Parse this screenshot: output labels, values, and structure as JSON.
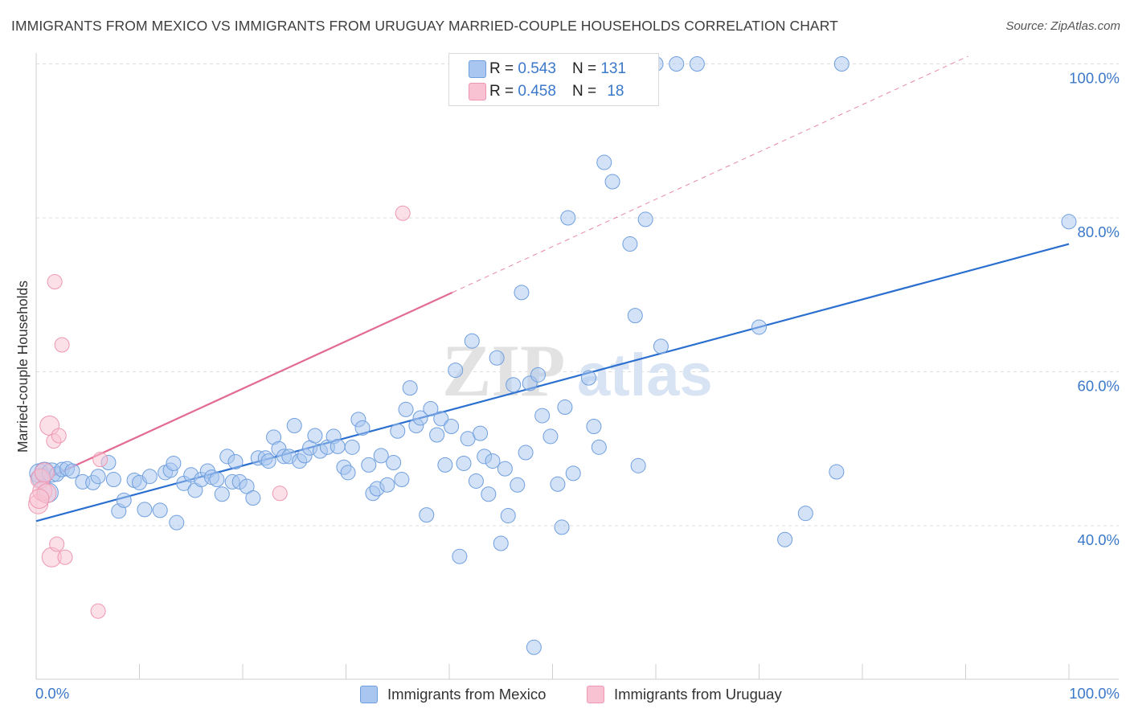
{
  "title": "IMMIGRANTS FROM MEXICO VS IMMIGRANTS FROM URUGUAY MARRIED-COUPLE HOUSEHOLDS CORRELATION CHART",
  "source": "Source: ZipAtlas.com",
  "watermark": {
    "zip": "ZIP",
    "atlas": "atlas"
  },
  "legend": {
    "r_label": "R =",
    "n_label": "N =",
    "rows": [
      {
        "r": "0.543",
        "n": "131",
        "color": "#a8c6ef",
        "border": "#6f9fde"
      },
      {
        "r": "0.458",
        "n": "18",
        "color": "#f9c2d2",
        "border": "#ee97b2"
      }
    ]
  },
  "bottom_legend": [
    {
      "label": "Immigrants from Mexico",
      "color": "#a8c6ef",
      "border": "#6f9fde"
    },
    {
      "label": "Immigrants from Uruguay",
      "color": "#f9c2d2",
      "border": "#ee97b2"
    }
  ],
  "chart_data": {
    "type": "scatter",
    "title": "IMMIGRANTS FROM MEXICO VS IMMIGRANTS FROM URUGUAY MARRIED-COUPLE HOUSEHOLDS CORRELATION CHART",
    "xlabel": "",
    "ylabel": "Married-couple Households",
    "xlim": [
      0,
      100
    ],
    "ylim": [
      20,
      101
    ],
    "x_tick_labels": [
      "0.0%",
      "100.0%"
    ],
    "y_tick_labels": [
      "40.0%",
      "60.0%",
      "80.0%",
      "100.0%"
    ],
    "y_ticks": [
      40,
      60,
      80,
      100
    ],
    "grid": true,
    "legend_position": "top-center",
    "series": [
      {
        "name": "Immigrants from Mexico",
        "color": "#6f9fde",
        "fill": "#a8c6ef",
        "trend": {
          "x": [
            0,
            100
          ],
          "y": [
            40.6,
            76.6
          ],
          "color": "#2a6fd0"
        },
        "points": [
          [
            0.3,
            46.8
          ],
          [
            0.5,
            46.2
          ],
          [
            0.8,
            47.0
          ],
          [
            1.2,
            44.3
          ],
          [
            1.5,
            46.9
          ],
          [
            2.0,
            46.7
          ],
          [
            2.5,
            47.3
          ],
          [
            3.0,
            47.4
          ],
          [
            3.5,
            47.1
          ],
          [
            4.5,
            45.7
          ],
          [
            5.5,
            45.6
          ],
          [
            6.0,
            46.4
          ],
          [
            7.0,
            48.2
          ],
          [
            7.5,
            46.0
          ],
          [
            8.0,
            41.9
          ],
          [
            8.5,
            43.3
          ],
          [
            9.5,
            45.9
          ],
          [
            10.0,
            45.6
          ],
          [
            10.5,
            42.1
          ],
          [
            11.0,
            46.4
          ],
          [
            12.0,
            42.0
          ],
          [
            12.5,
            46.9
          ],
          [
            13.0,
            47.2
          ],
          [
            13.3,
            48.1
          ],
          [
            13.6,
            40.4
          ],
          [
            14.3,
            45.5
          ],
          [
            15.0,
            46.6
          ],
          [
            15.4,
            44.6
          ],
          [
            16.0,
            46.0
          ],
          [
            16.6,
            47.1
          ],
          [
            17.0,
            46.3
          ],
          [
            17.5,
            46.0
          ],
          [
            18.0,
            44.1
          ],
          [
            18.5,
            49.0
          ],
          [
            19.0,
            45.7
          ],
          [
            19.3,
            48.3
          ],
          [
            19.7,
            45.7
          ],
          [
            20.4,
            45.1
          ],
          [
            21.0,
            43.6
          ],
          [
            21.5,
            48.8
          ],
          [
            22.2,
            48.8
          ],
          [
            22.5,
            48.4
          ],
          [
            23.0,
            51.5
          ],
          [
            23.5,
            50.0
          ],
          [
            24.0,
            49.0
          ],
          [
            24.5,
            49.0
          ],
          [
            25.0,
            53.0
          ],
          [
            25.5,
            48.4
          ],
          [
            26.0,
            49.1
          ],
          [
            26.5,
            50.1
          ],
          [
            27.0,
            51.7
          ],
          [
            27.5,
            49.7
          ],
          [
            28.2,
            50.2
          ],
          [
            28.8,
            51.6
          ],
          [
            29.2,
            50.3
          ],
          [
            29.8,
            47.6
          ],
          [
            30.2,
            46.9
          ],
          [
            30.6,
            50.2
          ],
          [
            31.2,
            53.8
          ],
          [
            31.6,
            52.7
          ],
          [
            32.2,
            47.9
          ],
          [
            32.6,
            44.2
          ],
          [
            33.0,
            44.8
          ],
          [
            33.4,
            49.1
          ],
          [
            34.0,
            45.3
          ],
          [
            34.6,
            48.2
          ],
          [
            35.0,
            52.3
          ],
          [
            35.4,
            46.0
          ],
          [
            35.8,
            55.1
          ],
          [
            36.2,
            57.9
          ],
          [
            36.8,
            53.0
          ],
          [
            37.2,
            54.0
          ],
          [
            37.8,
            41.4
          ],
          [
            38.2,
            55.2
          ],
          [
            38.8,
            51.8
          ],
          [
            39.2,
            53.9
          ],
          [
            39.6,
            47.9
          ],
          [
            40.2,
            52.9
          ],
          [
            40.6,
            60.2
          ],
          [
            41.0,
            36.0
          ],
          [
            41.4,
            48.1
          ],
          [
            41.8,
            51.3
          ],
          [
            42.2,
            64.0
          ],
          [
            42.6,
            45.8
          ],
          [
            43.0,
            52.0
          ],
          [
            43.4,
            49.0
          ],
          [
            43.8,
            44.1
          ],
          [
            44.2,
            48.4
          ],
          [
            44.6,
            61.8
          ],
          [
            45.0,
            37.7
          ],
          [
            45.4,
            47.4
          ],
          [
            45.7,
            41.3
          ],
          [
            46.2,
            58.3
          ],
          [
            46.6,
            45.3
          ],
          [
            47.0,
            70.3
          ],
          [
            47.4,
            49.5
          ],
          [
            47.8,
            58.5
          ],
          [
            48.2,
            24.2
          ],
          [
            48.6,
            59.6
          ],
          [
            49.0,
            54.3
          ],
          [
            49.8,
            51.6
          ],
          [
            50.5,
            45.4
          ],
          [
            50.9,
            39.8
          ],
          [
            51.2,
            55.4
          ],
          [
            51.5,
            80.0
          ],
          [
            52.0,
            46.8
          ],
          [
            53.5,
            59.2
          ],
          [
            54.0,
            52.9
          ],
          [
            54.5,
            50.2
          ],
          [
            55.0,
            87.2
          ],
          [
            55.8,
            84.7
          ],
          [
            57.5,
            76.6
          ],
          [
            58.0,
            67.3
          ],
          [
            58.3,
            47.8
          ],
          [
            59.0,
            79.8
          ],
          [
            60.5,
            63.3
          ],
          [
            70.0,
            65.8
          ],
          [
            72.5,
            38.2
          ],
          [
            74.5,
            41.6
          ],
          [
            77.5,
            47.0
          ],
          [
            100.0,
            79.5
          ],
          [
            56.0,
            100.0
          ],
          [
            60.0,
            100.0
          ],
          [
            62.0,
            100.0
          ],
          [
            64.0,
            100.0
          ],
          [
            78.0,
            100.0
          ],
          [
            53.5,
            100.0
          ]
        ]
      },
      {
        "name": "Immigrants from Uruguay",
        "color": "#ee97b2",
        "fill": "#f9c2d2",
        "trend": {
          "x": [
            0,
            40.3
          ],
          "y": [
            45.5,
            70.3
          ],
          "dashed_x": [
            40.3,
            100
          ],
          "dashed_y": [
            70.3,
            107
          ],
          "color": "#e36b93"
        },
        "points": [
          [
            0.2,
            42.8
          ],
          [
            0.4,
            46.1
          ],
          [
            0.6,
            44.5
          ],
          [
            0.8,
            46.9
          ],
          [
            1.0,
            44.2
          ],
          [
            1.3,
            53.0
          ],
          [
            1.5,
            35.9
          ],
          [
            1.7,
            51.0
          ],
          [
            1.8,
            71.7
          ],
          [
            2.0,
            37.6
          ],
          [
            2.2,
            51.7
          ],
          [
            2.5,
            63.5
          ],
          [
            2.8,
            35.9
          ],
          [
            6.0,
            28.9
          ],
          [
            6.2,
            48.6
          ],
          [
            23.6,
            44.2
          ],
          [
            35.5,
            80.6
          ],
          [
            0.3,
            43.5
          ]
        ]
      }
    ]
  }
}
